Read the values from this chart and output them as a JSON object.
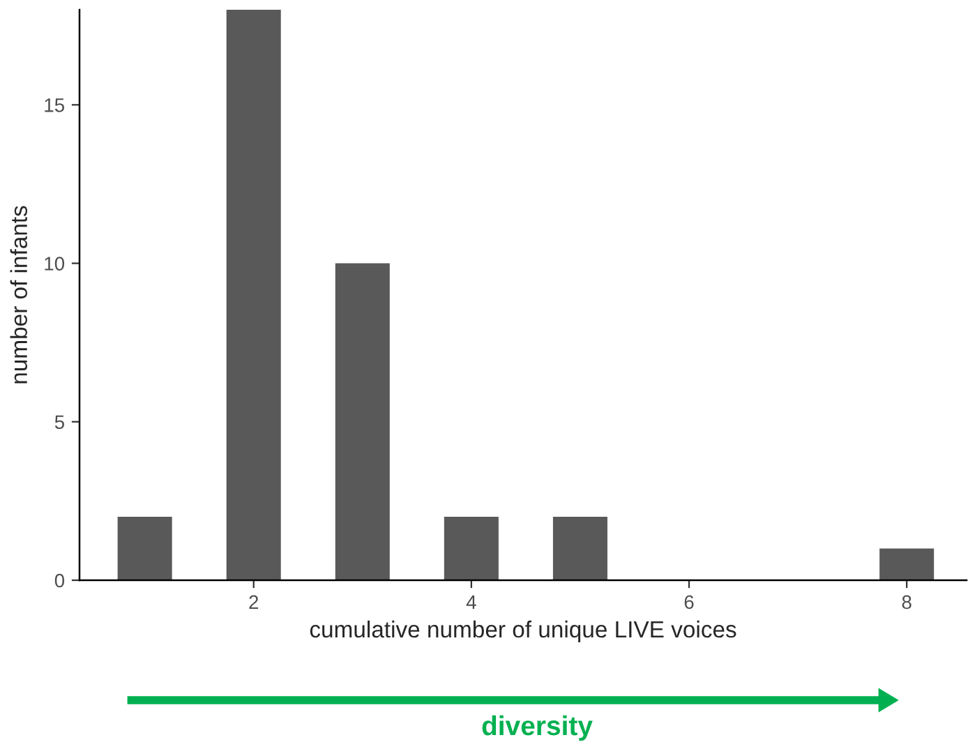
{
  "chart_data": {
    "type": "bar",
    "x": [
      1,
      2,
      3,
      4,
      5,
      8
    ],
    "values": [
      2,
      18,
      10,
      2,
      2,
      1
    ],
    "color": "#595959",
    "xlabel": "cumulative number of unique LIVE voices",
    "ylabel": "number of infants",
    "xlim": [
      0.4,
      8.55
    ],
    "xticks": [
      2,
      4,
      6,
      8
    ],
    "ylim": [
      0,
      18
    ],
    "yticks": [
      0,
      5,
      10,
      15
    ],
    "grid": false,
    "legend": false,
    "annotations": [
      "diversity"
    ]
  }
}
